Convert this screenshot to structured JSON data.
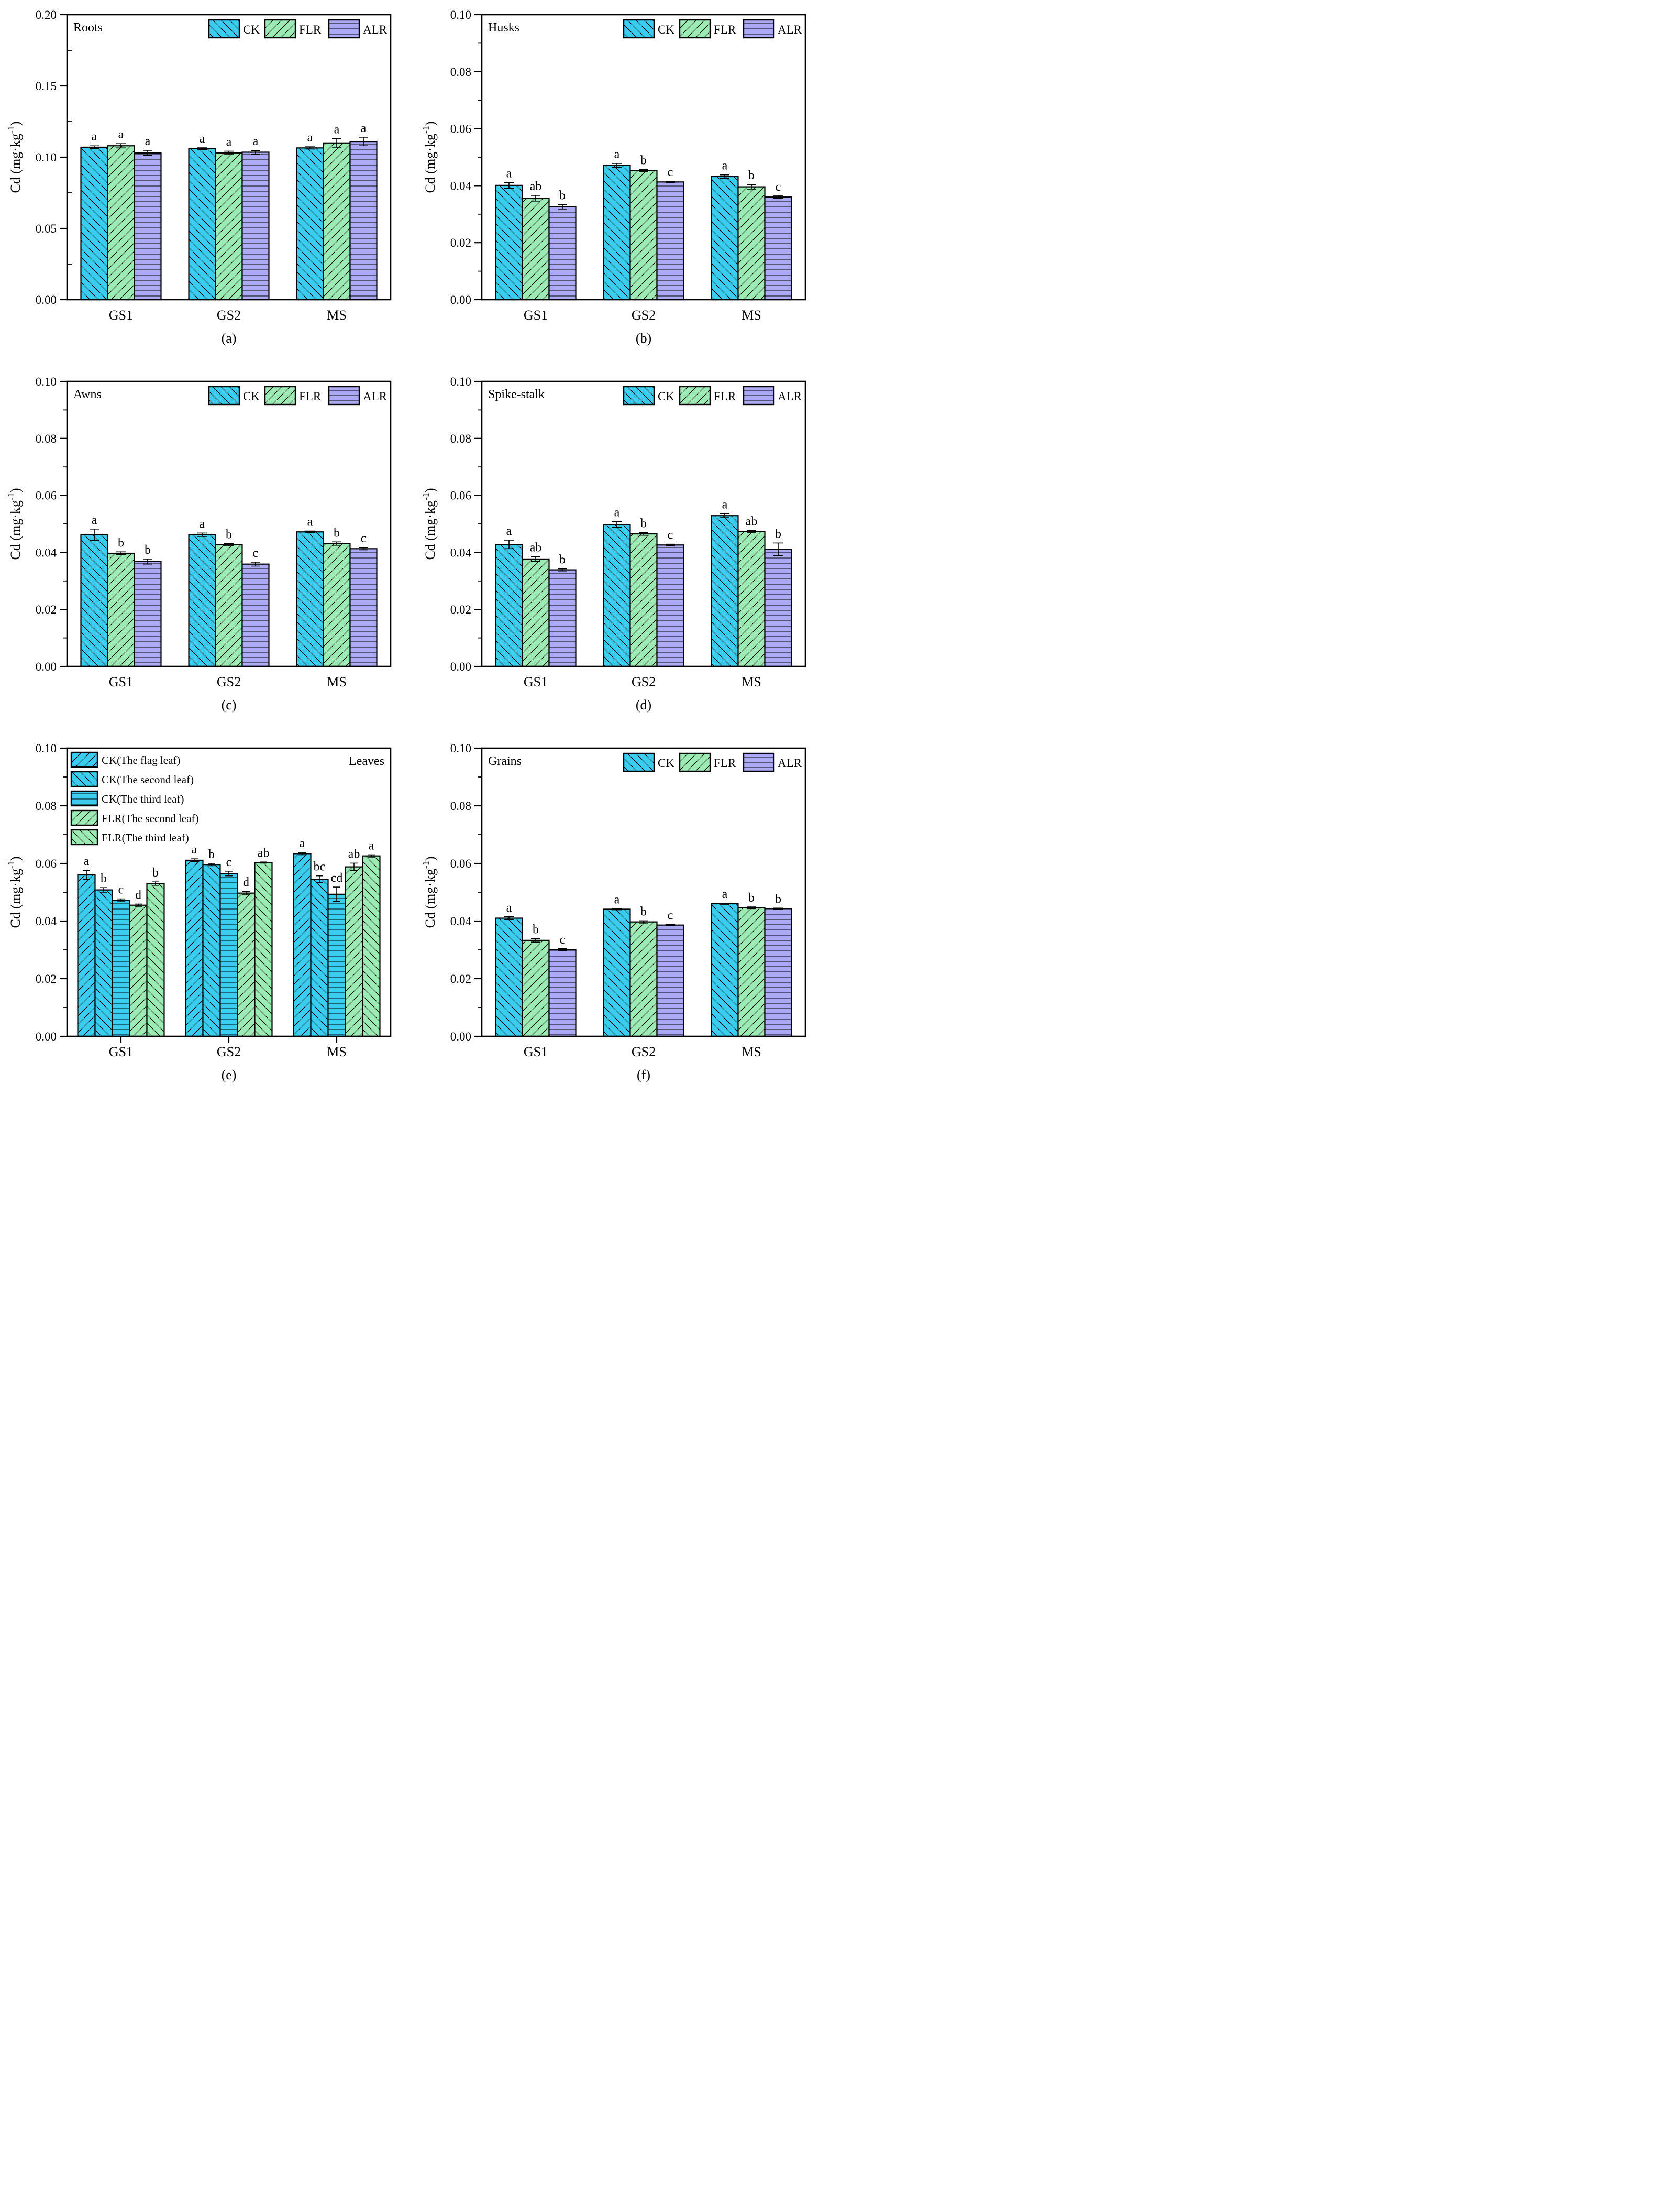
{
  "y_axis_label": {
    "base": "Cd (mg·kg",
    "superscript": "-1",
    "close": ")"
  },
  "categories": [
    "GS1",
    "GS2",
    "MS"
  ],
  "colors": {
    "ck_cyan": "#3BCDF0",
    "flr_green": "#9CEBB5",
    "alr_purple": "#ACAAF5",
    "outline": "#000000"
  },
  "chart_data": [
    {
      "id": "a",
      "type": "bar",
      "panel_label": "(a)",
      "title": "Roots",
      "title_side": "left",
      "ylim": [
        0,
        0.2
      ],
      "y_major_step": 0.05,
      "y_minor_step": 0.025,
      "y_tick_labels": [
        "0.00",
        "0.05",
        "0.10",
        "0.15",
        "0.20"
      ],
      "x_tick_marks": false,
      "legend": {
        "position": "top-right",
        "orientation": "horizontal",
        "entries": [
          "CK",
          "FLR",
          "ALR"
        ]
      },
      "series": [
        {
          "name": "CK",
          "color": "ck_cyan",
          "hatch": "back",
          "values": [
            0.107,
            0.106,
            0.1065
          ],
          "errors": [
            0.001,
            0.0006,
            0.0008
          ],
          "letters": [
            "a",
            "a",
            "a"
          ]
        },
        {
          "name": "FLR",
          "color": "flr_green",
          "hatch": "fwd",
          "values": [
            0.108,
            0.103,
            0.11
          ],
          "errors": [
            0.0015,
            0.0012,
            0.003
          ],
          "letters": [
            "a",
            "a",
            "a"
          ]
        },
        {
          "name": "ALR",
          "color": "alr_purple",
          "hatch": "horiz",
          "values": [
            0.103,
            0.1035,
            0.111
          ],
          "errors": [
            0.0018,
            0.0012,
            0.003
          ],
          "letters": [
            "a",
            "a",
            "a"
          ]
        }
      ]
    },
    {
      "id": "b",
      "type": "bar",
      "panel_label": "(b)",
      "title": "Husks",
      "title_side": "left",
      "ylim": [
        0,
        0.1
      ],
      "y_major_step": 0.02,
      "y_minor_step": 0.01,
      "y_tick_labels": [
        "0.00",
        "0.02",
        "0.04",
        "0.06",
        "0.08",
        "0.10"
      ],
      "x_tick_marks": false,
      "legend": {
        "position": "top-right",
        "orientation": "horizontal",
        "entries": [
          "CK",
          "FLR",
          "ALR"
        ]
      },
      "series": [
        {
          "name": "CK",
          "color": "ck_cyan",
          "hatch": "back",
          "values": [
            0.0401,
            0.0471,
            0.0432
          ],
          "errors": [
            0.001,
            0.0007,
            0.0006
          ],
          "letters": [
            "a",
            "a",
            "a"
          ]
        },
        {
          "name": "FLR",
          "color": "flr_green",
          "hatch": "fwd",
          "values": [
            0.0356,
            0.0453,
            0.0396
          ],
          "errors": [
            0.001,
            0.0004,
            0.0008
          ],
          "letters": [
            "ab",
            "b",
            "b"
          ]
        },
        {
          "name": "ALR",
          "color": "alr_purple",
          "hatch": "horiz",
          "values": [
            0.0326,
            0.0413,
            0.036
          ],
          "errors": [
            0.0008,
            0.0002,
            0.0004
          ],
          "letters": [
            "b",
            "c",
            "c"
          ]
        }
      ]
    },
    {
      "id": "c",
      "type": "bar",
      "panel_label": "(c)",
      "title": "Awns",
      "title_side": "left",
      "ylim": [
        0,
        0.1
      ],
      "y_major_step": 0.02,
      "y_minor_step": 0.01,
      "y_tick_labels": [
        "0.00",
        "0.02",
        "0.04",
        "0.06",
        "0.08",
        "0.10"
      ],
      "x_tick_marks": false,
      "legend": {
        "position": "top-right",
        "orientation": "horizontal",
        "entries": [
          "CK",
          "FLR",
          "ALR"
        ]
      },
      "series": [
        {
          "name": "CK",
          "color": "ck_cyan",
          "hatch": "back",
          "values": [
            0.0462,
            0.0462,
            0.0472
          ],
          "errors": [
            0.002,
            0.0006,
            0.0003
          ],
          "letters": [
            "a",
            "a",
            "a"
          ]
        },
        {
          "name": "FLR",
          "color": "flr_green",
          "hatch": "fwd",
          "values": [
            0.0397,
            0.0427,
            0.0431
          ],
          "errors": [
            0.0005,
            0.0004,
            0.0006
          ],
          "letters": [
            "b",
            "b",
            "b"
          ]
        },
        {
          "name": "ALR",
          "color": "alr_purple",
          "hatch": "horiz",
          "values": [
            0.0368,
            0.0359,
            0.0413
          ],
          "errors": [
            0.0009,
            0.0007,
            0.0004
          ],
          "letters": [
            "b",
            "c",
            "c"
          ]
        }
      ]
    },
    {
      "id": "d",
      "type": "bar",
      "panel_label": "(d)",
      "title": "Spike-stalk",
      "title_side": "left",
      "ylim": [
        0,
        0.1
      ],
      "y_major_step": 0.02,
      "y_minor_step": 0.01,
      "y_tick_labels": [
        "0.00",
        "0.02",
        "0.04",
        "0.06",
        "0.08",
        "0.10"
      ],
      "x_tick_marks": false,
      "legend": {
        "position": "top-right",
        "orientation": "horizontal",
        "entries": [
          "CK",
          "FLR",
          "ALR"
        ]
      },
      "series": [
        {
          "name": "CK",
          "color": "ck_cyan",
          "hatch": "back",
          "values": [
            0.0428,
            0.0498,
            0.0529
          ],
          "errors": [
            0.0015,
            0.001,
            0.0007
          ],
          "letters": [
            "a",
            "a",
            "a"
          ]
        },
        {
          "name": "FLR",
          "color": "flr_green",
          "hatch": "fwd",
          "values": [
            0.0377,
            0.0465,
            0.0473
          ],
          "errors": [
            0.0008,
            0.0005,
            0.0004
          ],
          "letters": [
            "ab",
            "b",
            "ab"
          ]
        },
        {
          "name": "ALR",
          "color": "alr_purple",
          "hatch": "horiz",
          "values": [
            0.0339,
            0.0426,
            0.0411
          ],
          "errors": [
            0.0004,
            0.0003,
            0.0022
          ],
          "letters": [
            "b",
            "c",
            "b"
          ]
        }
      ]
    },
    {
      "id": "e",
      "type": "bar",
      "panel_label": "(e)",
      "title": "Leaves",
      "title_side": "right",
      "ylim": [
        0,
        0.1
      ],
      "y_major_step": 0.02,
      "y_minor_step": 0.01,
      "y_tick_labels": [
        "0.00",
        "0.02",
        "0.04",
        "0.06",
        "0.08",
        "0.10"
      ],
      "x_tick_marks": true,
      "legend": {
        "position": "top-left",
        "orientation": "vertical",
        "entries": [
          "CK(The flag leaf)",
          "CK(The second leaf)",
          "CK(The third leaf)",
          "FLR(The second leaf)",
          "FLR(The third leaf)"
        ]
      },
      "series": [
        {
          "name": "CK(The flag leaf)",
          "color": "ck_cyan",
          "hatch": "fwd",
          "values": [
            0.056,
            0.0611,
            0.0634
          ],
          "errors": [
            0.0016,
            0.0005,
            0.0004
          ],
          "letters": [
            "a",
            "a",
            "a"
          ]
        },
        {
          "name": "CK(The second leaf)",
          "color": "ck_cyan",
          "hatch": "back",
          "values": [
            0.0508,
            0.0596,
            0.0545
          ],
          "errors": [
            0.0008,
            0.0004,
            0.0012
          ],
          "letters": [
            "b",
            "b",
            "bc"
          ]
        },
        {
          "name": "CK(The third leaf)",
          "color": "ck_cyan",
          "hatch": "horiz",
          "values": [
            0.0472,
            0.0565,
            0.0493
          ],
          "errors": [
            0.0005,
            0.0008,
            0.0025
          ],
          "letters": [
            "c",
            "c",
            "cd"
          ]
        },
        {
          "name": "FLR(The second leaf)",
          "color": "flr_green",
          "hatch": "fwd",
          "values": [
            0.0455,
            0.0497,
            0.0588
          ],
          "errors": [
            0.0004,
            0.0006,
            0.0013
          ],
          "letters": [
            "d",
            "d",
            "ab"
          ]
        },
        {
          "name": "FLR(The third leaf)",
          "color": "flr_green",
          "hatch": "back",
          "values": [
            0.053,
            0.0603,
            0.0626
          ],
          "errors": [
            0.0006,
            0.0002,
            0.0004
          ],
          "letters": [
            "b",
            "ab",
            "a"
          ]
        }
      ]
    },
    {
      "id": "f",
      "type": "bar",
      "panel_label": "(f)",
      "title": "Grains",
      "title_side": "left",
      "ylim": [
        0,
        0.1
      ],
      "y_major_step": 0.02,
      "y_minor_step": 0.01,
      "y_tick_labels": [
        "0.00",
        "0.02",
        "0.04",
        "0.06",
        "0.08",
        "0.10"
      ],
      "x_tick_marks": false,
      "legend": {
        "position": "top-right",
        "orientation": "horizontal",
        "entries": [
          "CK",
          "FLR",
          "ALR"
        ]
      },
      "series": [
        {
          "name": "CK",
          "color": "ck_cyan",
          "hatch": "back",
          "values": [
            0.041,
            0.0441,
            0.046
          ],
          "errors": [
            0.0005,
            0.0002,
            0.0002
          ],
          "letters": [
            "a",
            "a",
            "a"
          ]
        },
        {
          "name": "FLR",
          "color": "flr_green",
          "hatch": "fwd",
          "values": [
            0.0333,
            0.0397,
            0.0446
          ],
          "errors": [
            0.0006,
            0.0004,
            0.0003
          ],
          "letters": [
            "b",
            "b",
            "b"
          ]
        },
        {
          "name": "ALR",
          "color": "alr_purple",
          "hatch": "horiz",
          "values": [
            0.0301,
            0.0386,
            0.0443
          ],
          "errors": [
            0.0003,
            0.0002,
            0.0002
          ],
          "letters": [
            "c",
            "c",
            "b"
          ]
        }
      ]
    }
  ]
}
